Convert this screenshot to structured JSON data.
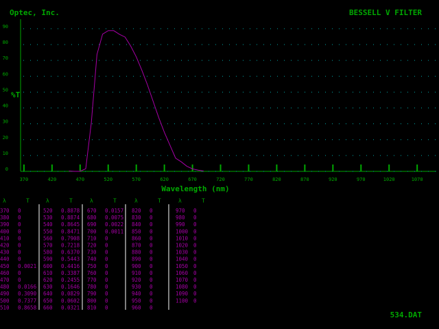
{
  "header": {
    "left": "Optec, Inc.",
    "right": "BESSELL V FILTER"
  },
  "chart_data": {
    "type": "line",
    "ylabel": "%T",
    "xlabel": "Wavelength (nm)",
    "x": [
      450,
      460,
      470,
      480,
      490,
      500,
      510,
      520,
      530,
      540,
      550,
      560,
      570,
      580,
      590,
      600,
      610,
      620,
      630,
      640,
      650,
      660,
      670,
      680,
      690
    ],
    "values": [
      0.21,
      0,
      0,
      1.66,
      30.9,
      73.77,
      86.58,
      88.78,
      88.74,
      86.45,
      84.71,
      79.08,
      72.18,
      63.7,
      54.43,
      44.16,
      33.87,
      24.55,
      16.46,
      8.29,
      6.02,
      3.21,
      1.57,
      0.75,
      0.22
    ],
    "color": "#a800a8",
    "xlim": [
      364,
      1104
    ],
    "ylim": [
      0,
      96
    ],
    "xticks": [
      370,
      420,
      470,
      520,
      570,
      620,
      670,
      720,
      770,
      820,
      870,
      920,
      970,
      1020,
      1070
    ],
    "yticks": [
      0,
      10,
      20,
      30,
      40,
      50,
      60,
      70,
      80,
      90
    ],
    "grid": true
  },
  "table": {
    "headers": [
      [
        "λ",
        "T"
      ],
      [
        "λ",
        "T"
      ],
      [
        "λ",
        "T"
      ],
      [
        "λ",
        "T"
      ],
      [
        "λ",
        "T"
      ]
    ],
    "groups": [
      [
        [
          "370",
          "0"
        ],
        [
          "380",
          "0"
        ],
        [
          "390",
          "0"
        ],
        [
          "400",
          "0"
        ],
        [
          "410",
          "0"
        ],
        [
          "420",
          "0"
        ],
        [
          "430",
          "0"
        ],
        [
          "440",
          "0"
        ],
        [
          "450",
          "0.0021"
        ],
        [
          "460",
          "0"
        ],
        [
          "470",
          "0"
        ],
        [
          "480",
          "0.0166"
        ],
        [
          "490",
          "0.3090"
        ],
        [
          "500",
          "0.7377"
        ],
        [
          "510",
          "0.8658"
        ]
      ],
      [
        [
          "520",
          "0.8878"
        ],
        [
          "530",
          "0.8874"
        ],
        [
          "540",
          "0.8645"
        ],
        [
          "550",
          "0.8471"
        ],
        [
          "560",
          "0.7908"
        ],
        [
          "570",
          "0.7218"
        ],
        [
          "580",
          "0.6370"
        ],
        [
          "590",
          "0.5443"
        ],
        [
          "600",
          "0.4416"
        ],
        [
          "610",
          "0.3387"
        ],
        [
          "620",
          "0.2455"
        ],
        [
          "630",
          "0.1646"
        ],
        [
          "640",
          "0.0829"
        ],
        [
          "650",
          "0.0602"
        ],
        [
          "660",
          "0.0321"
        ]
      ],
      [
        [
          "670",
          "0.0157"
        ],
        [
          "680",
          "0.0075"
        ],
        [
          "690",
          "0.0022"
        ],
        [
          "700",
          "0.0011"
        ],
        [
          "710",
          "0"
        ],
        [
          "720",
          "0"
        ],
        [
          "730",
          "0"
        ],
        [
          "740",
          "0"
        ],
        [
          "750",
          "0"
        ],
        [
          "760",
          "0"
        ],
        [
          "770",
          "0"
        ],
        [
          "780",
          "0"
        ],
        [
          "790",
          "0"
        ],
        [
          "800",
          "0"
        ],
        [
          "810",
          "0"
        ]
      ],
      [
        [
          "820",
          "0"
        ],
        [
          "830",
          "0"
        ],
        [
          "840",
          "0"
        ],
        [
          "850",
          "0"
        ],
        [
          "860",
          "0"
        ],
        [
          "870",
          "0"
        ],
        [
          "880",
          "0"
        ],
        [
          "890",
          "0"
        ],
        [
          "900",
          "0"
        ],
        [
          "910",
          "0"
        ],
        [
          "920",
          "0"
        ],
        [
          "930",
          "0"
        ],
        [
          "940",
          "0"
        ],
        [
          "950",
          "0"
        ],
        [
          "960",
          "0"
        ]
      ],
      [
        [
          "970",
          "0"
        ],
        [
          "980",
          "0"
        ],
        [
          "990",
          "0"
        ],
        [
          "1000",
          "0"
        ],
        [
          "1010",
          "0"
        ],
        [
          "1020",
          "0"
        ],
        [
          "1030",
          "0"
        ],
        [
          "1040",
          "0"
        ],
        [
          "1050",
          "0"
        ],
        [
          "1060",
          "0"
        ],
        [
          "1070",
          "0"
        ],
        [
          "1080",
          "0"
        ],
        [
          "1090",
          "0"
        ],
        [
          "1100",
          "0"
        ]
      ]
    ]
  },
  "footer": "534.DAT"
}
